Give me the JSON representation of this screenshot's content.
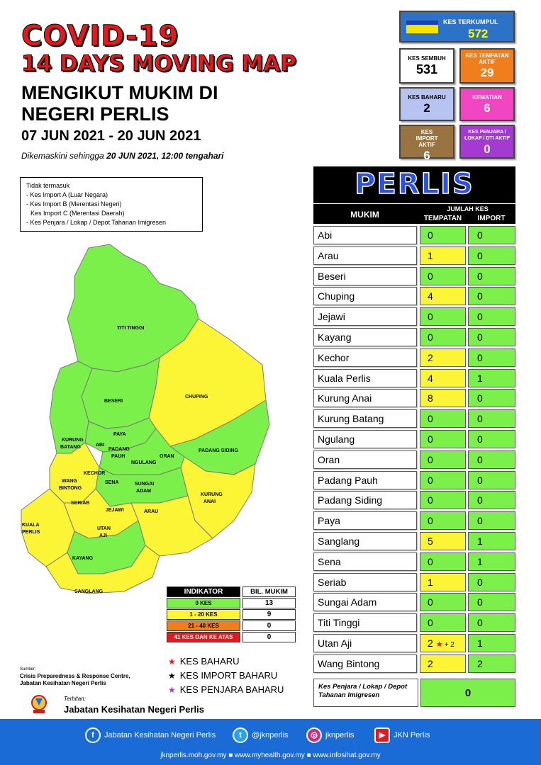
{
  "header": {
    "title1": "COVID-19",
    "title2": "14 DAYS MOVING MAP",
    "title3_line1": "MENGIKUT MUKIM DI",
    "title3_line2": "NEGERI PERLIS",
    "dates": "07 JUN 2021 - 20 JUN 2021",
    "updated_prefix": "Dikemaskini sehingga",
    "updated_value": "20 JUN 2021, 12:00 tengahari"
  },
  "notes": {
    "heading": "Tidak termasuk",
    "items": [
      "- Kes Import A (Luar Negara)",
      "- Kes Import B (Merentasi Negeri)",
      "Kes Import C (Merentasi Daerah)",
      "- Kes Penjara / Lokap / Depot Tahanan Imigresen"
    ]
  },
  "stats": {
    "total_label": "KES TERKUMPUL",
    "total_value": "572",
    "recovered_label": "KES SEMBUH",
    "recovered_value": "531",
    "local_label": "KES TEMPATAN AKTIF",
    "local_value": "29",
    "new_label": "KES BAHARU",
    "new_value": "2",
    "death_label": "KEMATIAN",
    "death_value": "6",
    "import_label": "KES IMPORT AKTIF",
    "import_value": "6",
    "prison_label": "KES PENJARA / LOKAP / DTI AKTIF",
    "prison_value": "0"
  },
  "table": {
    "title": "PERLIS",
    "col_mukim": "MUKIM",
    "col_jumlah": "JUMLAH KES",
    "col_tempatan": "TEMPATAN",
    "col_import": "IMPORT",
    "rows": [
      {
        "name": "Abi",
        "tempatan": "0",
        "import": "0",
        "color": "green"
      },
      {
        "name": "Arau",
        "tempatan": "1",
        "import": "0",
        "color": "yellow"
      },
      {
        "name": "Beseri",
        "tempatan": "0",
        "import": "0",
        "color": "green"
      },
      {
        "name": "Chuping",
        "tempatan": "4",
        "import": "0",
        "color": "yellow"
      },
      {
        "name": "Jejawi",
        "tempatan": "0",
        "import": "0",
        "color": "green"
      },
      {
        "name": "Kayang",
        "tempatan": "0",
        "import": "0",
        "color": "green"
      },
      {
        "name": "Kechor",
        "tempatan": "2",
        "import": "0",
        "color": "yellow"
      },
      {
        "name": "Kuala Perlis",
        "tempatan": "4",
        "import": "1",
        "color": "yellow"
      },
      {
        "name": "Kurung Anai",
        "tempatan": "8",
        "import": "0",
        "color": "yellow"
      },
      {
        "name": "Kurung Batang",
        "tempatan": "0",
        "import": "0",
        "color": "green"
      },
      {
        "name": "Ngulang",
        "tempatan": "0",
        "import": "0",
        "color": "green"
      },
      {
        "name": "Oran",
        "tempatan": "0",
        "import": "0",
        "color": "green"
      },
      {
        "name": "Padang Pauh",
        "tempatan": "0",
        "import": "0",
        "color": "green"
      },
      {
        "name": "Padang Siding",
        "tempatan": "0",
        "import": "0",
        "color": "green"
      },
      {
        "name": "Paya",
        "tempatan": "0",
        "import": "0",
        "color": "green"
      },
      {
        "name": "Sanglang",
        "tempatan": "5",
        "import": "1",
        "color": "yellow"
      },
      {
        "name": "Sena",
        "tempatan": "0",
        "import": "1",
        "color": "green"
      },
      {
        "name": "Seriab",
        "tempatan": "1",
        "import": "0",
        "color": "yellow"
      },
      {
        "name": "Sungai Adam",
        "tempatan": "0",
        "import": "0",
        "color": "green"
      },
      {
        "name": "Titi Tinggi",
        "tempatan": "0",
        "import": "0",
        "color": "green"
      },
      {
        "name": "Utan Aji",
        "tempatan": "2",
        "import": "1",
        "color": "yellow",
        "star": "★",
        "extra": "+ 2"
      },
      {
        "name": "Wang Bintong",
        "tempatan": "2",
        "import": "2",
        "color": "yellow"
      }
    ],
    "prison_label": "Kes Penjara / Lokap / Depot Tahanan Imigresen",
    "prison_value": "0"
  },
  "map": {
    "labels": [
      "TITI TINGGI",
      "CHUPING",
      "BESERI",
      "PAYA",
      "KURUNG",
      "BATANG",
      "ABI",
      "PADANG",
      "PAUH",
      "NGULANG",
      "ORAN",
      "PADANG SIDING",
      "KECHOR",
      "WANG",
      "BINTONG",
      "SENA",
      "SUNGAI",
      "ADAM",
      "KURUNG",
      "ANAI",
      "SERIAB",
      "JEJAWI",
      "ARAU",
      "KUALA",
      "PERLIS",
      "UTAN",
      "AJI",
      "KAYANG",
      "SANGLANG"
    ],
    "colors": {
      "green": "#7cf04a",
      "yellow": "#fbf535",
      "orange": "#f07e1d",
      "red": "#e8171d"
    }
  },
  "indicator": {
    "h1": "INDIKATOR",
    "h2": "BIL. MUKIM",
    "rows": [
      {
        "label": "0 KES",
        "value": "13",
        "color": "#7cf04a",
        "text": "#000"
      },
      {
        "label": "1 - 20 KES",
        "value": "9",
        "color": "#fbf535",
        "text": "#000"
      },
      {
        "label": "21 - 40 KES",
        "value": "0",
        "color": "#f07e1d",
        "text": "#000"
      },
      {
        "label": "41 KES DAN KE ATAS",
        "value": "0",
        "color": "#e8171d",
        "text": "#fff"
      }
    ]
  },
  "legend": {
    "items": [
      {
        "label": "KES BAHARU",
        "color": "#e8171d"
      },
      {
        "label": "KES IMPORT BAHARU",
        "color": "#000000"
      },
      {
        "label": "KES PENJARA BAHARU",
        "color": "#a43ad1"
      }
    ]
  },
  "source": {
    "label": "Sumber:",
    "line1": "Crisis Preparedness & Response Centre,",
    "line2": "Jabatan Kesihatan Negeri Perlis",
    "terbitan": "Terbitan:",
    "publisher": "Jabatan Kesihatan Negeri Perlis"
  },
  "footer": {
    "facebook": "Jabatan Kesihatan Negeri Perlis",
    "twitter": "@jknperlis",
    "instagram": "jknperlis",
    "youtube": "JKN Perlis",
    "urls": "jknperlis.moh.gov.my ■ www.myhealth.gov.my ■ www.infosihat.gov.my"
  }
}
